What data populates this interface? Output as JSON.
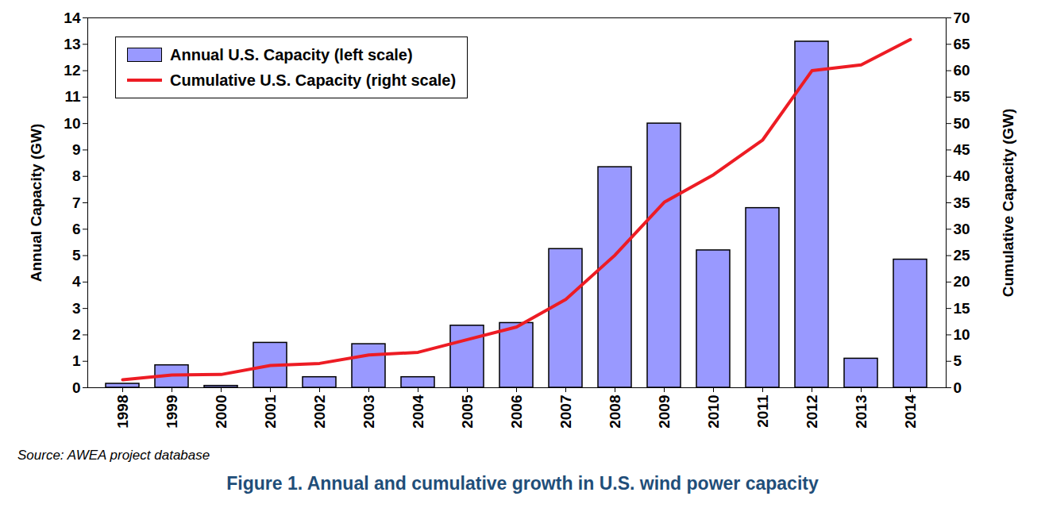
{
  "chart_data": {
    "type": "bar",
    "title": "Figure 1. Annual and cumulative growth in U.S. wind power capacity",
    "source": "Source: AWEA project database",
    "ylabel": "Annual Capacity (GW)",
    "y2label": "Cumulative Capacity (GW)",
    "categories": [
      "1998",
      "1999",
      "2000",
      "2001",
      "2002",
      "2003",
      "2004",
      "2005",
      "2006",
      "2007",
      "2008",
      "2009",
      "2010",
      "2011",
      "2012",
      "2013",
      "2014"
    ],
    "series": [
      {
        "name": "Annual U.S. Capacity (left scale)",
        "type": "bar",
        "axis": "y",
        "color": "#9999FF",
        "values": [
          0.15,
          0.85,
          0.07,
          1.7,
          0.4,
          1.65,
          0.4,
          2.35,
          2.45,
          5.25,
          8.35,
          10.0,
          5.2,
          6.8,
          13.1,
          1.1,
          4.85
        ]
      },
      {
        "name": "Cumulative U.S. Capacity (right scale)",
        "type": "line",
        "axis": "y2",
        "color": "#ED1C24",
        "values": [
          1.5,
          2.4,
          2.5,
          4.2,
          4.6,
          6.2,
          6.7,
          9.1,
          11.5,
          16.7,
          25.1,
          35.1,
          40.3,
          46.9,
          60.0,
          61.1,
          65.9
        ]
      }
    ],
    "ylim": [
      0,
      14
    ],
    "yticks": [
      0,
      1,
      2,
      3,
      4,
      5,
      6,
      7,
      8,
      9,
      10,
      11,
      12,
      13,
      14
    ],
    "y2lim": [
      0,
      70
    ],
    "y2ticks": [
      0,
      5,
      10,
      15,
      20,
      25,
      30,
      35,
      40,
      45,
      50,
      55,
      60,
      65,
      70
    ],
    "grid": false,
    "legend": "top-left"
  }
}
